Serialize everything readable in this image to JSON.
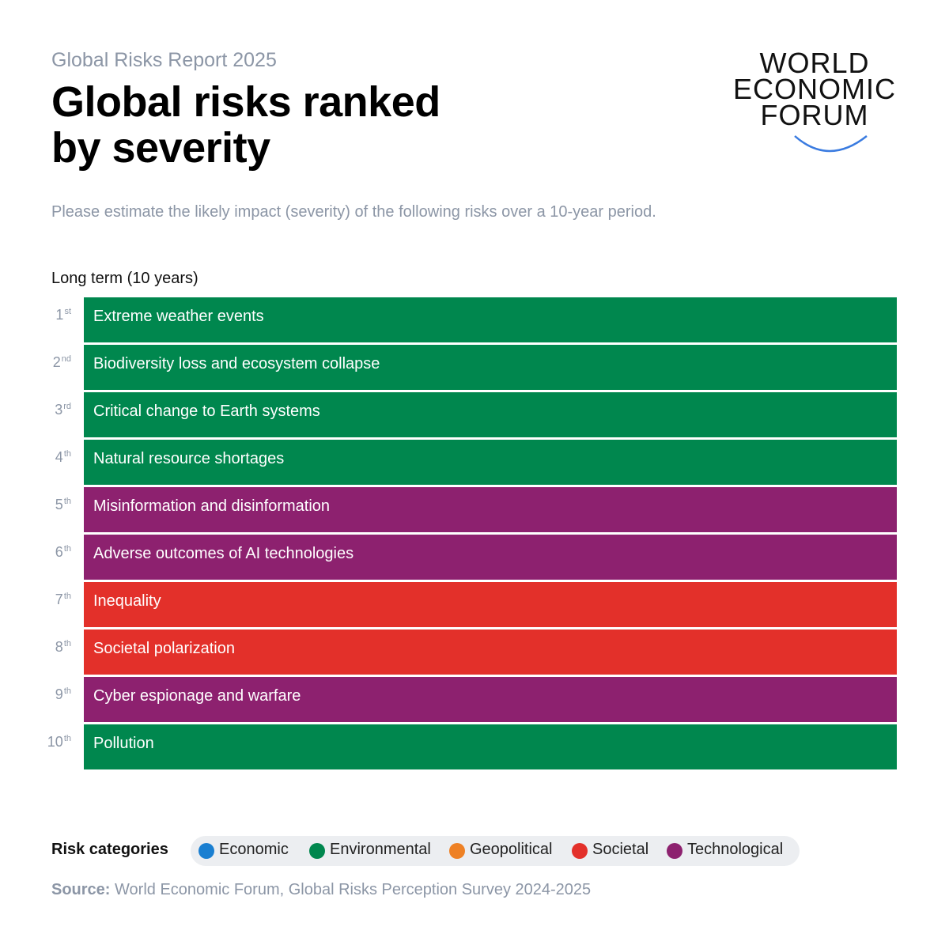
{
  "header": {
    "eyebrow": "Global Risks Report 2025",
    "title_line1": "Global risks ranked",
    "title_line2": "by severity",
    "question": "Please estimate the likely impact (severity) of the following risks over a 10-year period."
  },
  "logo": {
    "line1": "WORLD",
    "line2": "ECONOMIC",
    "line3": "FORUM",
    "arc_color": "#3a7be0"
  },
  "chart_data": {
    "type": "table",
    "title": "Long term (10 years)",
    "categories_colors": {
      "Economic": "#1a7fd1",
      "Environmental": "#00874e",
      "Geopolitical": "#ee8125",
      "Societal": "#e3302a",
      "Technological": "#8d216f"
    },
    "rows": [
      {
        "rank": "1",
        "suffix": "st",
        "label": "Extreme weather events",
        "category": "Environmental"
      },
      {
        "rank": "2",
        "suffix": "nd",
        "label": "Biodiversity loss and ecosystem collapse",
        "category": "Environmental"
      },
      {
        "rank": "3",
        "suffix": "rd",
        "label": "Critical change to Earth systems",
        "category": "Environmental"
      },
      {
        "rank": "4",
        "suffix": "th",
        "label": "Natural resource shortages",
        "category": "Environmental"
      },
      {
        "rank": "5",
        "suffix": "th",
        "label": "Misinformation and disinformation",
        "category": "Technological"
      },
      {
        "rank": "6",
        "suffix": "th",
        "label": "Adverse outcomes of AI technologies",
        "category": "Technological"
      },
      {
        "rank": "7",
        "suffix": "th",
        "label": "Inequality",
        "category": "Societal"
      },
      {
        "rank": "8",
        "suffix": "th",
        "label": "Societal polarization",
        "category": "Societal"
      },
      {
        "rank": "9",
        "suffix": "th",
        "label": "Cyber espionage and warfare",
        "category": "Technological"
      },
      {
        "rank": "10",
        "suffix": "th",
        "label": "Pollution",
        "category": "Environmental"
      }
    ]
  },
  "legend": {
    "label": "Risk categories",
    "items": [
      {
        "name": "Economic",
        "color": "#1a7fd1"
      },
      {
        "name": "Environmental",
        "color": "#00874e"
      },
      {
        "name": "Geopolitical",
        "color": "#ee8125"
      },
      {
        "name": "Societal",
        "color": "#e3302a"
      },
      {
        "name": "Technological",
        "color": "#8d216f"
      }
    ]
  },
  "source": {
    "label": "Source:",
    "text": "World Economic Forum, Global Risks Perception Survey 2024-2025"
  }
}
